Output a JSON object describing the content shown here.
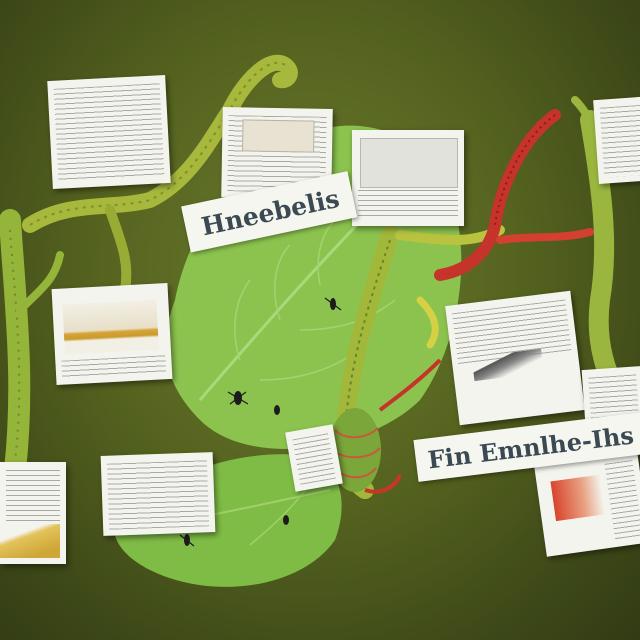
{
  "scene": {
    "banners": [
      {
        "id": "banner-upper",
        "text": "Hneebelis"
      },
      {
        "id": "banner-lower",
        "text": "Fin Emnlhe-Ihs"
      }
    ],
    "colors": {
      "background": "#4f5c1e",
      "leaf": "#86c04a",
      "stem": "#9bb13a",
      "red_tendril": "#c8362a",
      "paper": "#f4f4ee",
      "banner_text": "#3b4a52"
    }
  }
}
